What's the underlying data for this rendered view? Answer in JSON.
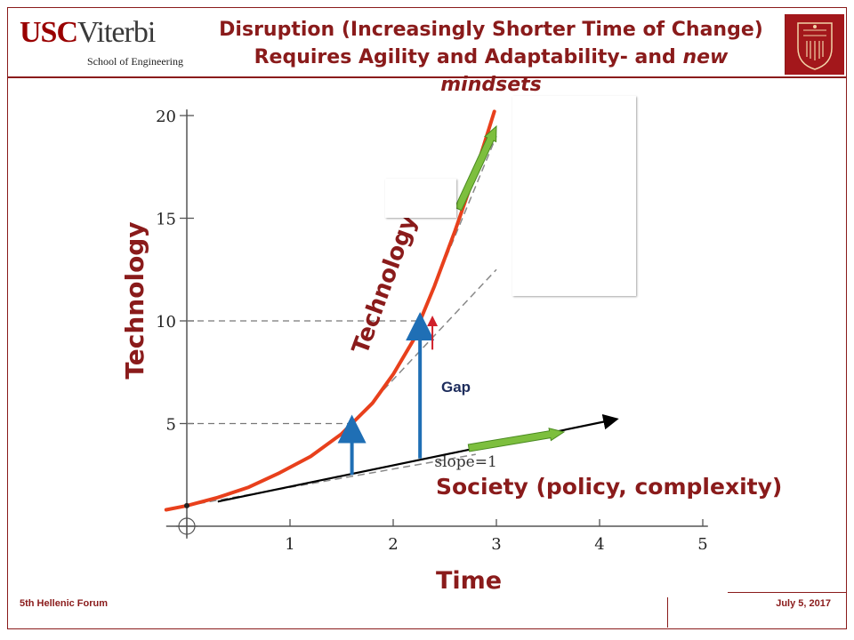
{
  "header": {
    "logo_usc": "USC",
    "logo_viterbi": "Viterbi",
    "logo_sub": "School of Engineering",
    "title_line1": "Disruption (Increasingly Shorter Time of Change)",
    "title_line2_prefix": "Requires Agility and Adaptability- and ",
    "title_line2_italic": "new mindsets"
  },
  "footer": {
    "left": "5th Hellenic Forum",
    "right": "July 5, 2017"
  },
  "colors": {
    "brand": "#8a1b1b",
    "technology_curve": "#e8401c",
    "society_line": "#000000",
    "gap_arrow": "#1f6fb5",
    "green_arrow": "#7dbf3e",
    "red_arrow": "#d0202a"
  },
  "chart_data": {
    "type": "line",
    "title": "",
    "xlabel": "Time",
    "ylabel": "Technology",
    "xlim": [
      0,
      5
    ],
    "ylim": [
      0,
      20
    ],
    "xticks": [
      "1",
      "2",
      "3",
      "4",
      "5"
    ],
    "yticks": [
      "5",
      "10",
      "15",
      "20"
    ],
    "series": [
      {
        "name": "Technology",
        "x": [
          -0.2,
          0.0,
          0.3,
          0.6,
          0.9,
          1.2,
          1.5,
          1.6,
          1.8,
          2.0,
          2.2,
          2.26,
          2.4,
          2.6,
          2.8,
          2.98
        ],
        "y": [
          0.8,
          1.0,
          1.4,
          1.9,
          2.6,
          3.4,
          4.5,
          5.0,
          6.0,
          7.4,
          9.1,
          10.0,
          11.7,
          14.4,
          17.3,
          20.2
        ]
      },
      {
        "name": "Society (policy, complexity)",
        "x": [
          0.3,
          4.15
        ],
        "y": [
          1.2,
          5.2
        ]
      }
    ],
    "reference_lines": [
      {
        "label": "slope=1",
        "from": [
          0.0,
          1.0
        ],
        "to": [
          2.8,
          3.5
        ]
      },
      {
        "from": [
          1.6,
          5.0
        ],
        "to": [
          3.0,
          12.5
        ]
      },
      {
        "from": [
          2.26,
          10.0
        ],
        "to": [
          3.0,
          19.0
        ]
      }
    ],
    "guides": [
      {
        "x": 1.6,
        "y": 5.0
      },
      {
        "x": 2.26,
        "y": 10.0
      }
    ],
    "annotations": {
      "gap_label": "Gap",
      "slope_label": "slope=1",
      "technology_label": "Technology",
      "society_label": "Society (policy, complexity)"
    },
    "gap_arrows": [
      {
        "x": 1.6,
        "from": 2.5,
        "to": 5.0
      },
      {
        "x": 2.26,
        "from": 3.3,
        "to": 10.0
      }
    ]
  }
}
